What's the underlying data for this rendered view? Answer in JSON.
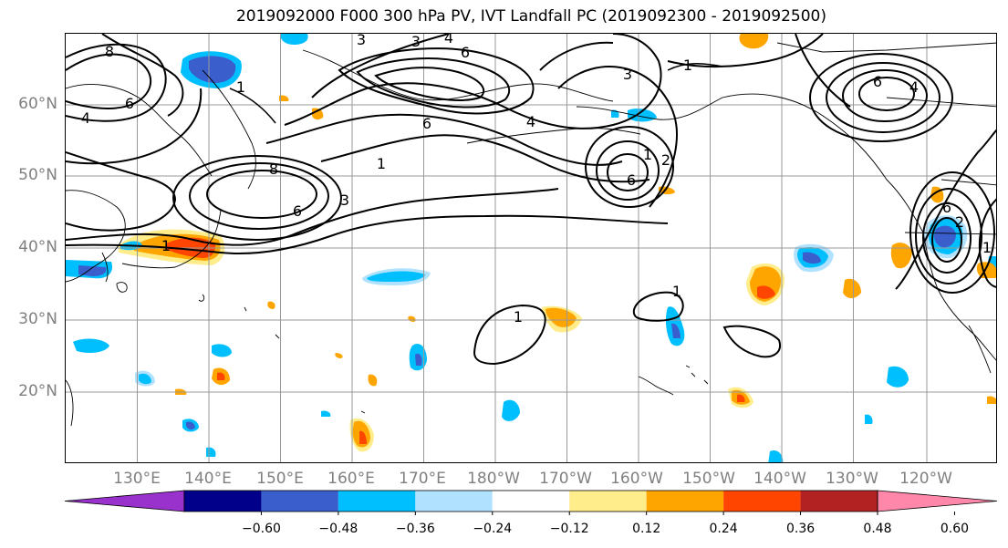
{
  "title": "2019092000 F000 300 hPa PV, IVT Landfall PC (2019092300 - 2019092500)",
  "lat_labels": [
    "60°N",
    "50°N",
    "40°N",
    "30°N",
    "20°N"
  ],
  "lon_labels": [
    "130°E",
    "140°E",
    "150°E",
    "160°E",
    "170°E",
    "180°W",
    "170°W",
    "160°W",
    "150°W",
    "140°W",
    "130°W",
    "120°W"
  ],
  "colorbar": {
    "tick_labels": [
      "−0.60",
      "−0.48",
      "−0.36",
      "−0.24",
      "−0.12",
      "0.12",
      "0.24",
      "0.36",
      "0.48",
      "0.60"
    ],
    "colors": [
      "#9932CC",
      "#00008B",
      "#3A5FCD",
      "#00BFFF",
      "#B0E2FF",
      "#FFFFFF",
      "#FFEC8B",
      "#FFA500",
      "#FF4500",
      "#B22222",
      "#FF88AA"
    ]
  },
  "contour_labels": [
    "8",
    "6",
    "4",
    "1",
    "3",
    "3",
    "6",
    "4",
    "3",
    "1",
    "6",
    "4",
    "1",
    "2",
    "1",
    "6",
    "6",
    "4",
    "3",
    "8",
    "6",
    "1",
    "1",
    "1",
    "6",
    "2",
    "1"
  ]
}
